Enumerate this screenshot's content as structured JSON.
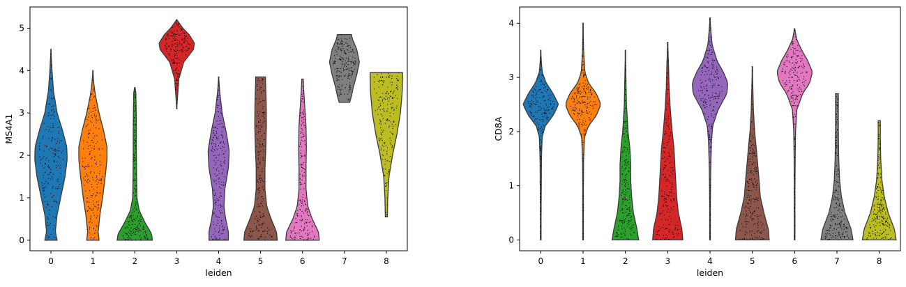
{
  "chart_data": [
    {
      "type": "violin",
      "xlabel": "leiden",
      "ylabel": "MS4A1",
      "categories": [
        "0",
        "1",
        "2",
        "3",
        "4",
        "5",
        "6",
        "7",
        "8"
      ],
      "ylim": [
        -0.25,
        5.5
      ],
      "yticks": [
        0,
        1,
        2,
        3,
        4,
        5
      ],
      "colors": [
        "#1f77b4",
        "#ff7f0e",
        "#2ca02c",
        "#d62728",
        "#9467bd",
        "#8c564b",
        "#e377c2",
        "#7f7f7f",
        "#bcbd22"
      ],
      "violins": [
        {
          "min": 0.0,
          "max": 4.5,
          "profile": [
            [
              0.0,
              0.35
            ],
            [
              0.2,
              0.25
            ],
            [
              0.6,
              0.35
            ],
            [
              1.0,
              0.55
            ],
            [
              1.5,
              0.8
            ],
            [
              1.9,
              0.92
            ],
            [
              2.2,
              0.9
            ],
            [
              2.6,
              0.65
            ],
            [
              3.0,
              0.35
            ],
            [
              3.5,
              0.15
            ],
            [
              4.0,
              0.06
            ],
            [
              4.5,
              0.0
            ]
          ]
        },
        {
          "min": 0.0,
          "max": 4.0,
          "profile": [
            [
              0.0,
              0.35
            ],
            [
              0.2,
              0.3
            ],
            [
              0.6,
              0.4
            ],
            [
              1.0,
              0.55
            ],
            [
              1.5,
              0.7
            ],
            [
              1.9,
              0.8
            ],
            [
              2.2,
              0.8
            ],
            [
              2.6,
              0.6
            ],
            [
              3.0,
              0.35
            ],
            [
              3.4,
              0.15
            ],
            [
              3.7,
              0.05
            ],
            [
              4.0,
              0.0
            ]
          ]
        },
        {
          "min": 0.0,
          "max": 3.6,
          "profile": [
            [
              0.0,
              1.0
            ],
            [
              0.15,
              0.95
            ],
            [
              0.4,
              0.6
            ],
            [
              0.7,
              0.25
            ],
            [
              1.0,
              0.12
            ],
            [
              1.5,
              0.1
            ],
            [
              2.0,
              0.09
            ],
            [
              2.5,
              0.09
            ],
            [
              3.0,
              0.08
            ],
            [
              3.5,
              0.06
            ],
            [
              3.6,
              0.0
            ]
          ]
        },
        {
          "min": 3.1,
          "max": 5.2,
          "profile": [
            [
              3.1,
              0.0
            ],
            [
              3.4,
              0.05
            ],
            [
              3.8,
              0.12
            ],
            [
              4.2,
              0.4
            ],
            [
              4.5,
              0.95
            ],
            [
              4.65,
              1.0
            ],
            [
              4.85,
              0.7
            ],
            [
              5.0,
              0.35
            ],
            [
              5.2,
              0.0
            ]
          ]
        },
        {
          "min": 0.0,
          "max": 3.85,
          "profile": [
            [
              0.0,
              0.55
            ],
            [
              0.2,
              0.55
            ],
            [
              0.5,
              0.4
            ],
            [
              0.8,
              0.3
            ],
            [
              1.2,
              0.35
            ],
            [
              1.7,
              0.55
            ],
            [
              2.1,
              0.6
            ],
            [
              2.5,
              0.45
            ],
            [
              3.0,
              0.2
            ],
            [
              3.5,
              0.06
            ],
            [
              3.85,
              0.0
            ]
          ]
        },
        {
          "min": 0.0,
          "max": 3.85,
          "profile": [
            [
              0.0,
              0.95
            ],
            [
              0.2,
              0.9
            ],
            [
              0.5,
              0.6
            ],
            [
              0.8,
              0.35
            ],
            [
              1.2,
              0.25
            ],
            [
              1.7,
              0.25
            ],
            [
              2.2,
              0.3
            ],
            [
              2.7,
              0.33
            ],
            [
              3.2,
              0.32
            ],
            [
              3.5,
              0.3
            ],
            [
              3.75,
              0.28
            ],
            [
              3.85,
              0.28
            ]
          ]
        },
        {
          "min": 0.0,
          "max": 3.8,
          "profile": [
            [
              0.0,
              0.95
            ],
            [
              0.2,
              0.9
            ],
            [
              0.5,
              0.55
            ],
            [
              0.8,
              0.3
            ],
            [
              1.2,
              0.2
            ],
            [
              1.7,
              0.2
            ],
            [
              2.2,
              0.22
            ],
            [
              2.7,
              0.2
            ],
            [
              3.2,
              0.12
            ],
            [
              3.6,
              0.06
            ],
            [
              3.8,
              0.04
            ]
          ]
        },
        {
          "min": 3.25,
          "max": 4.85,
          "profile": [
            [
              3.25,
              0.3
            ],
            [
              3.4,
              0.4
            ],
            [
              3.6,
              0.5
            ],
            [
              3.9,
              0.7
            ],
            [
              4.2,
              0.85
            ],
            [
              4.5,
              0.7
            ],
            [
              4.75,
              0.45
            ],
            [
              4.85,
              0.4
            ]
          ]
        },
        {
          "min": 0.55,
          "max": 3.95,
          "profile": [
            [
              0.55,
              0.06
            ],
            [
              1.0,
              0.08
            ],
            [
              1.5,
              0.15
            ],
            [
              2.0,
              0.35
            ],
            [
              2.5,
              0.6
            ],
            [
              3.0,
              0.8
            ],
            [
              3.5,
              0.9
            ],
            [
              3.8,
              0.92
            ],
            [
              3.95,
              0.92
            ]
          ]
        }
      ]
    },
    {
      "type": "violin",
      "xlabel": "leiden",
      "ylabel": "CD8A",
      "categories": [
        "0",
        "1",
        "2",
        "3",
        "4",
        "5",
        "6",
        "7",
        "8"
      ],
      "ylim": [
        -0.2,
        4.3
      ],
      "yticks": [
        0,
        1,
        2,
        3,
        4
      ],
      "colors": [
        "#1f77b4",
        "#ff7f0e",
        "#2ca02c",
        "#d62728",
        "#9467bd",
        "#8c564b",
        "#e377c2",
        "#7f7f7f",
        "#bcbd22"
      ],
      "violins": [
        {
          "min": 0.0,
          "max": 3.5,
          "profile": [
            [
              0.0,
              0.02
            ],
            [
              0.5,
              0.02
            ],
            [
              1.0,
              0.03
            ],
            [
              1.5,
              0.04
            ],
            [
              1.9,
              0.08
            ],
            [
              2.1,
              0.25
            ],
            [
              2.3,
              0.7
            ],
            [
              2.5,
              1.0
            ],
            [
              2.7,
              0.7
            ],
            [
              2.9,
              0.3
            ],
            [
              3.1,
              0.08
            ],
            [
              3.3,
              0.03
            ],
            [
              3.5,
              0.0
            ]
          ]
        },
        {
          "min": 0.0,
          "max": 4.0,
          "profile": [
            [
              0.0,
              0.02
            ],
            [
              0.5,
              0.02
            ],
            [
              1.0,
              0.02
            ],
            [
              1.5,
              0.03
            ],
            [
              1.9,
              0.08
            ],
            [
              2.1,
              0.3
            ],
            [
              2.3,
              0.75
            ],
            [
              2.5,
              1.0
            ],
            [
              2.7,
              0.75
            ],
            [
              2.9,
              0.3
            ],
            [
              3.1,
              0.1
            ],
            [
              3.5,
              0.03
            ],
            [
              4.0,
              0.0
            ]
          ]
        },
        {
          "min": 0.0,
          "max": 3.5,
          "profile": [
            [
              0.0,
              0.75
            ],
            [
              0.2,
              0.65
            ],
            [
              0.5,
              0.45
            ],
            [
              0.8,
              0.35
            ],
            [
              1.1,
              0.3
            ],
            [
              1.4,
              0.3
            ],
            [
              1.7,
              0.25
            ],
            [
              2.0,
              0.15
            ],
            [
              2.5,
              0.06
            ],
            [
              3.0,
              0.03
            ],
            [
              3.5,
              0.0
            ]
          ]
        },
        {
          "min": 0.0,
          "max": 3.65,
          "profile": [
            [
              0.0,
              0.85
            ],
            [
              0.2,
              0.8
            ],
            [
              0.5,
              0.6
            ],
            [
              0.8,
              0.5
            ],
            [
              1.1,
              0.45
            ],
            [
              1.4,
              0.4
            ],
            [
              1.7,
              0.35
            ],
            [
              2.0,
              0.25
            ],
            [
              2.4,
              0.15
            ],
            [
              2.8,
              0.08
            ],
            [
              3.2,
              0.05
            ],
            [
              3.65,
              0.0
            ]
          ]
        },
        {
          "min": 0.0,
          "max": 4.1,
          "profile": [
            [
              0.0,
              0.02
            ],
            [
              0.7,
              0.02
            ],
            [
              1.3,
              0.04
            ],
            [
              1.8,
              0.08
            ],
            [
              2.1,
              0.15
            ],
            [
              2.4,
              0.45
            ],
            [
              2.7,
              0.95
            ],
            [
              2.9,
              1.0
            ],
            [
              3.1,
              0.75
            ],
            [
              3.3,
              0.4
            ],
            [
              3.6,
              0.12
            ],
            [
              3.9,
              0.04
            ],
            [
              4.1,
              0.0
            ]
          ]
        },
        {
          "min": 0.0,
          "max": 3.2,
          "profile": [
            [
              0.0,
              0.95
            ],
            [
              0.2,
              0.9
            ],
            [
              0.5,
              0.65
            ],
            [
              0.8,
              0.45
            ],
            [
              1.1,
              0.38
            ],
            [
              1.4,
              0.3
            ],
            [
              1.7,
              0.22
            ],
            [
              2.0,
              0.13
            ],
            [
              2.4,
              0.06
            ],
            [
              2.8,
              0.03
            ],
            [
              3.2,
              0.0
            ]
          ]
        },
        {
          "min": 0.0,
          "max": 3.9,
          "profile": [
            [
              0.0,
              0.02
            ],
            [
              0.5,
              0.02
            ],
            [
              1.0,
              0.02
            ],
            [
              1.5,
              0.03
            ],
            [
              2.0,
              0.05
            ],
            [
              2.4,
              0.12
            ],
            [
              2.7,
              0.45
            ],
            [
              2.9,
              0.85
            ],
            [
              3.1,
              1.0
            ],
            [
              3.3,
              0.75
            ],
            [
              3.5,
              0.4
            ],
            [
              3.7,
              0.12
            ],
            [
              3.9,
              0.0
            ]
          ]
        },
        {
          "min": 0.0,
          "max": 2.7,
          "profile": [
            [
              0.0,
              0.9
            ],
            [
              0.2,
              0.8
            ],
            [
              0.5,
              0.45
            ],
            [
              0.8,
              0.25
            ],
            [
              1.1,
              0.15
            ],
            [
              1.5,
              0.1
            ],
            [
              2.0,
              0.08
            ],
            [
              2.4,
              0.08
            ],
            [
              2.7,
              0.08
            ]
          ]
        },
        {
          "min": 0.0,
          "max": 2.2,
          "profile": [
            [
              0.0,
              0.95
            ],
            [
              0.2,
              0.85
            ],
            [
              0.5,
              0.5
            ],
            [
              0.8,
              0.28
            ],
            [
              1.1,
              0.15
            ],
            [
              1.5,
              0.08
            ],
            [
              1.9,
              0.06
            ],
            [
              2.2,
              0.06
            ]
          ]
        }
      ]
    }
  ]
}
